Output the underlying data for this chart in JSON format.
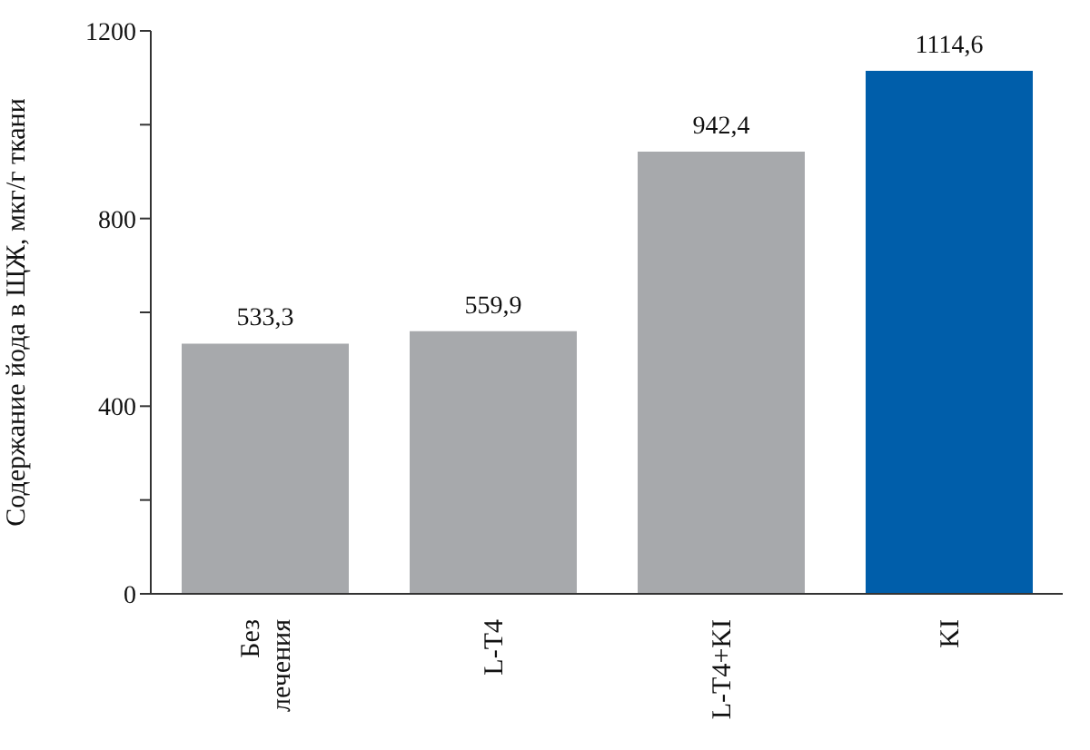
{
  "chart_data": {
    "type": "bar",
    "ylabel": "Содержание йода в ЩЖ, мкг/г ткани",
    "categories": [
      "Без лечения",
      "L-T4",
      "L-T4+KI",
      "KI"
    ],
    "values": [
      533.3,
      559.9,
      942.4,
      1114.6
    ],
    "colors": [
      "#a7a9ac",
      "#a7a9ac",
      "#a7a9ac",
      "#005eaa"
    ],
    "ylim": [
      0,
      1200
    ],
    "yticks": [
      0,
      {
        "value": 200,
        "label": null
      },
      400,
      {
        "value": 600,
        "label": null
      },
      800,
      {
        "value": 1000,
        "label": null
      },
      1200
    ],
    "value_labels": [
      "533,3",
      "559,9",
      "942,4",
      "1114,6"
    ],
    "grid": false,
    "legend": false
  }
}
